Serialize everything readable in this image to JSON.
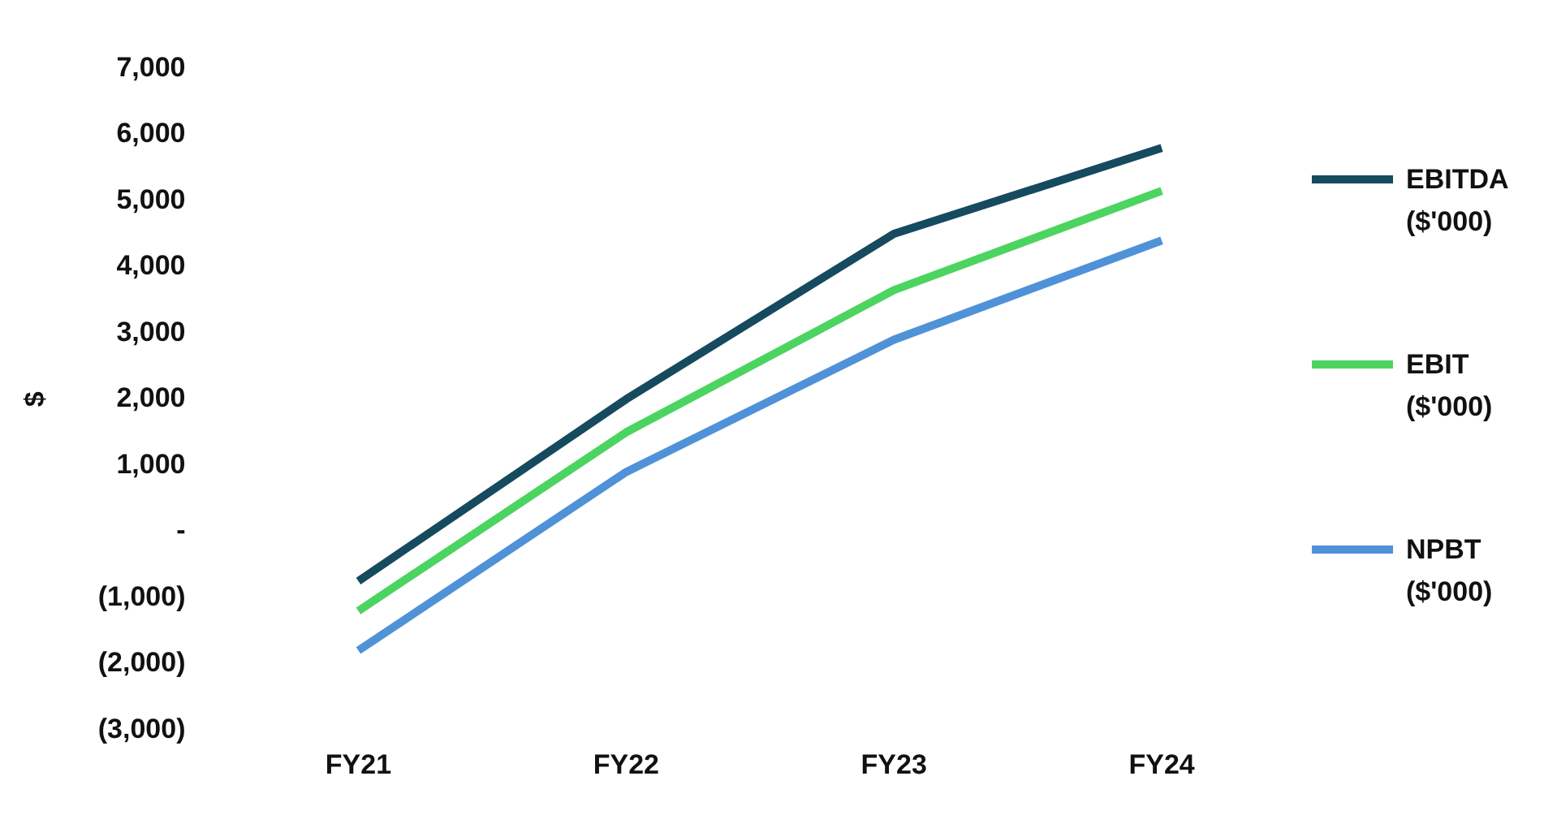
{
  "chart_data": {
    "type": "line",
    "ylabel": "$",
    "categories": [
      "FY21",
      "FY22",
      "FY23",
      "FY24"
    ],
    "series": [
      {
        "name": "EBITDA ($'000)",
        "color": "#164a5e",
        "values": [
          -750,
          2000,
          4500,
          5800
        ]
      },
      {
        "name": "EBIT ($'000)",
        "color": "#4cd460",
        "values": [
          -1200,
          1500,
          3650,
          5150
        ]
      },
      {
        "name": "NPBT ($'000)",
        "color": "#4f92d8",
        "values": [
          -1800,
          900,
          2900,
          4400
        ]
      }
    ],
    "ylim": [
      -3000,
      7000
    ],
    "yticks": [
      {
        "value": -3000,
        "label": "(3,000)"
      },
      {
        "value": -2000,
        "label": "(2,000)"
      },
      {
        "value": -1000,
        "label": "(1,000)"
      },
      {
        "value": 0,
        "label": "-"
      },
      {
        "value": 1000,
        "label": "1,000"
      },
      {
        "value": 2000,
        "label": "2,000"
      },
      {
        "value": 3000,
        "label": "3,000"
      },
      {
        "value": 4000,
        "label": "4,000"
      },
      {
        "value": 5000,
        "label": "5,000"
      },
      {
        "value": 6000,
        "label": "6,000"
      },
      {
        "value": 7000,
        "label": "7,000"
      }
    ],
    "grid": false,
    "legend": "right",
    "marker": "none",
    "line_style": "solid"
  }
}
